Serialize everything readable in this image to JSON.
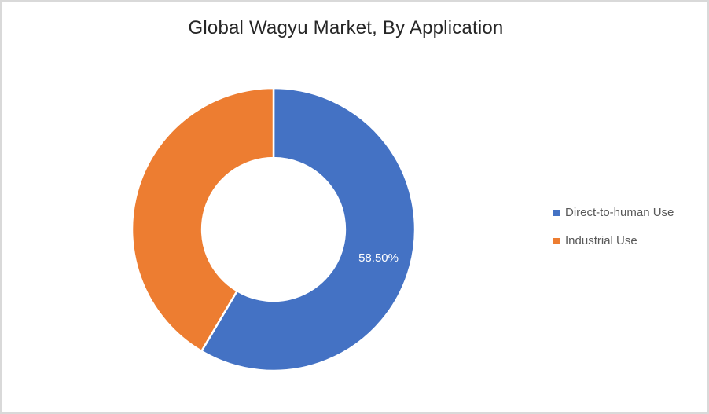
{
  "chart_data": {
    "type": "pie",
    "subtype": "donut",
    "title": "Global Wagyu Market, By Application",
    "slices": [
      {
        "label": "Direct-to-human Use",
        "value": 58.5,
        "color": "#4472C4",
        "data_label": "58.50%",
        "data_label_color": "#FFFFFF"
      },
      {
        "label": "Industrial Use",
        "value": 41.5,
        "color": "#ED7D31",
        "data_label": ""
      }
    ],
    "start_angle_deg": 0,
    "direction": "clockwise",
    "hole_ratio": 0.505,
    "slice_border_color": "#FFFFFF",
    "legend": {
      "position": "right",
      "text_color": "#595959"
    }
  }
}
